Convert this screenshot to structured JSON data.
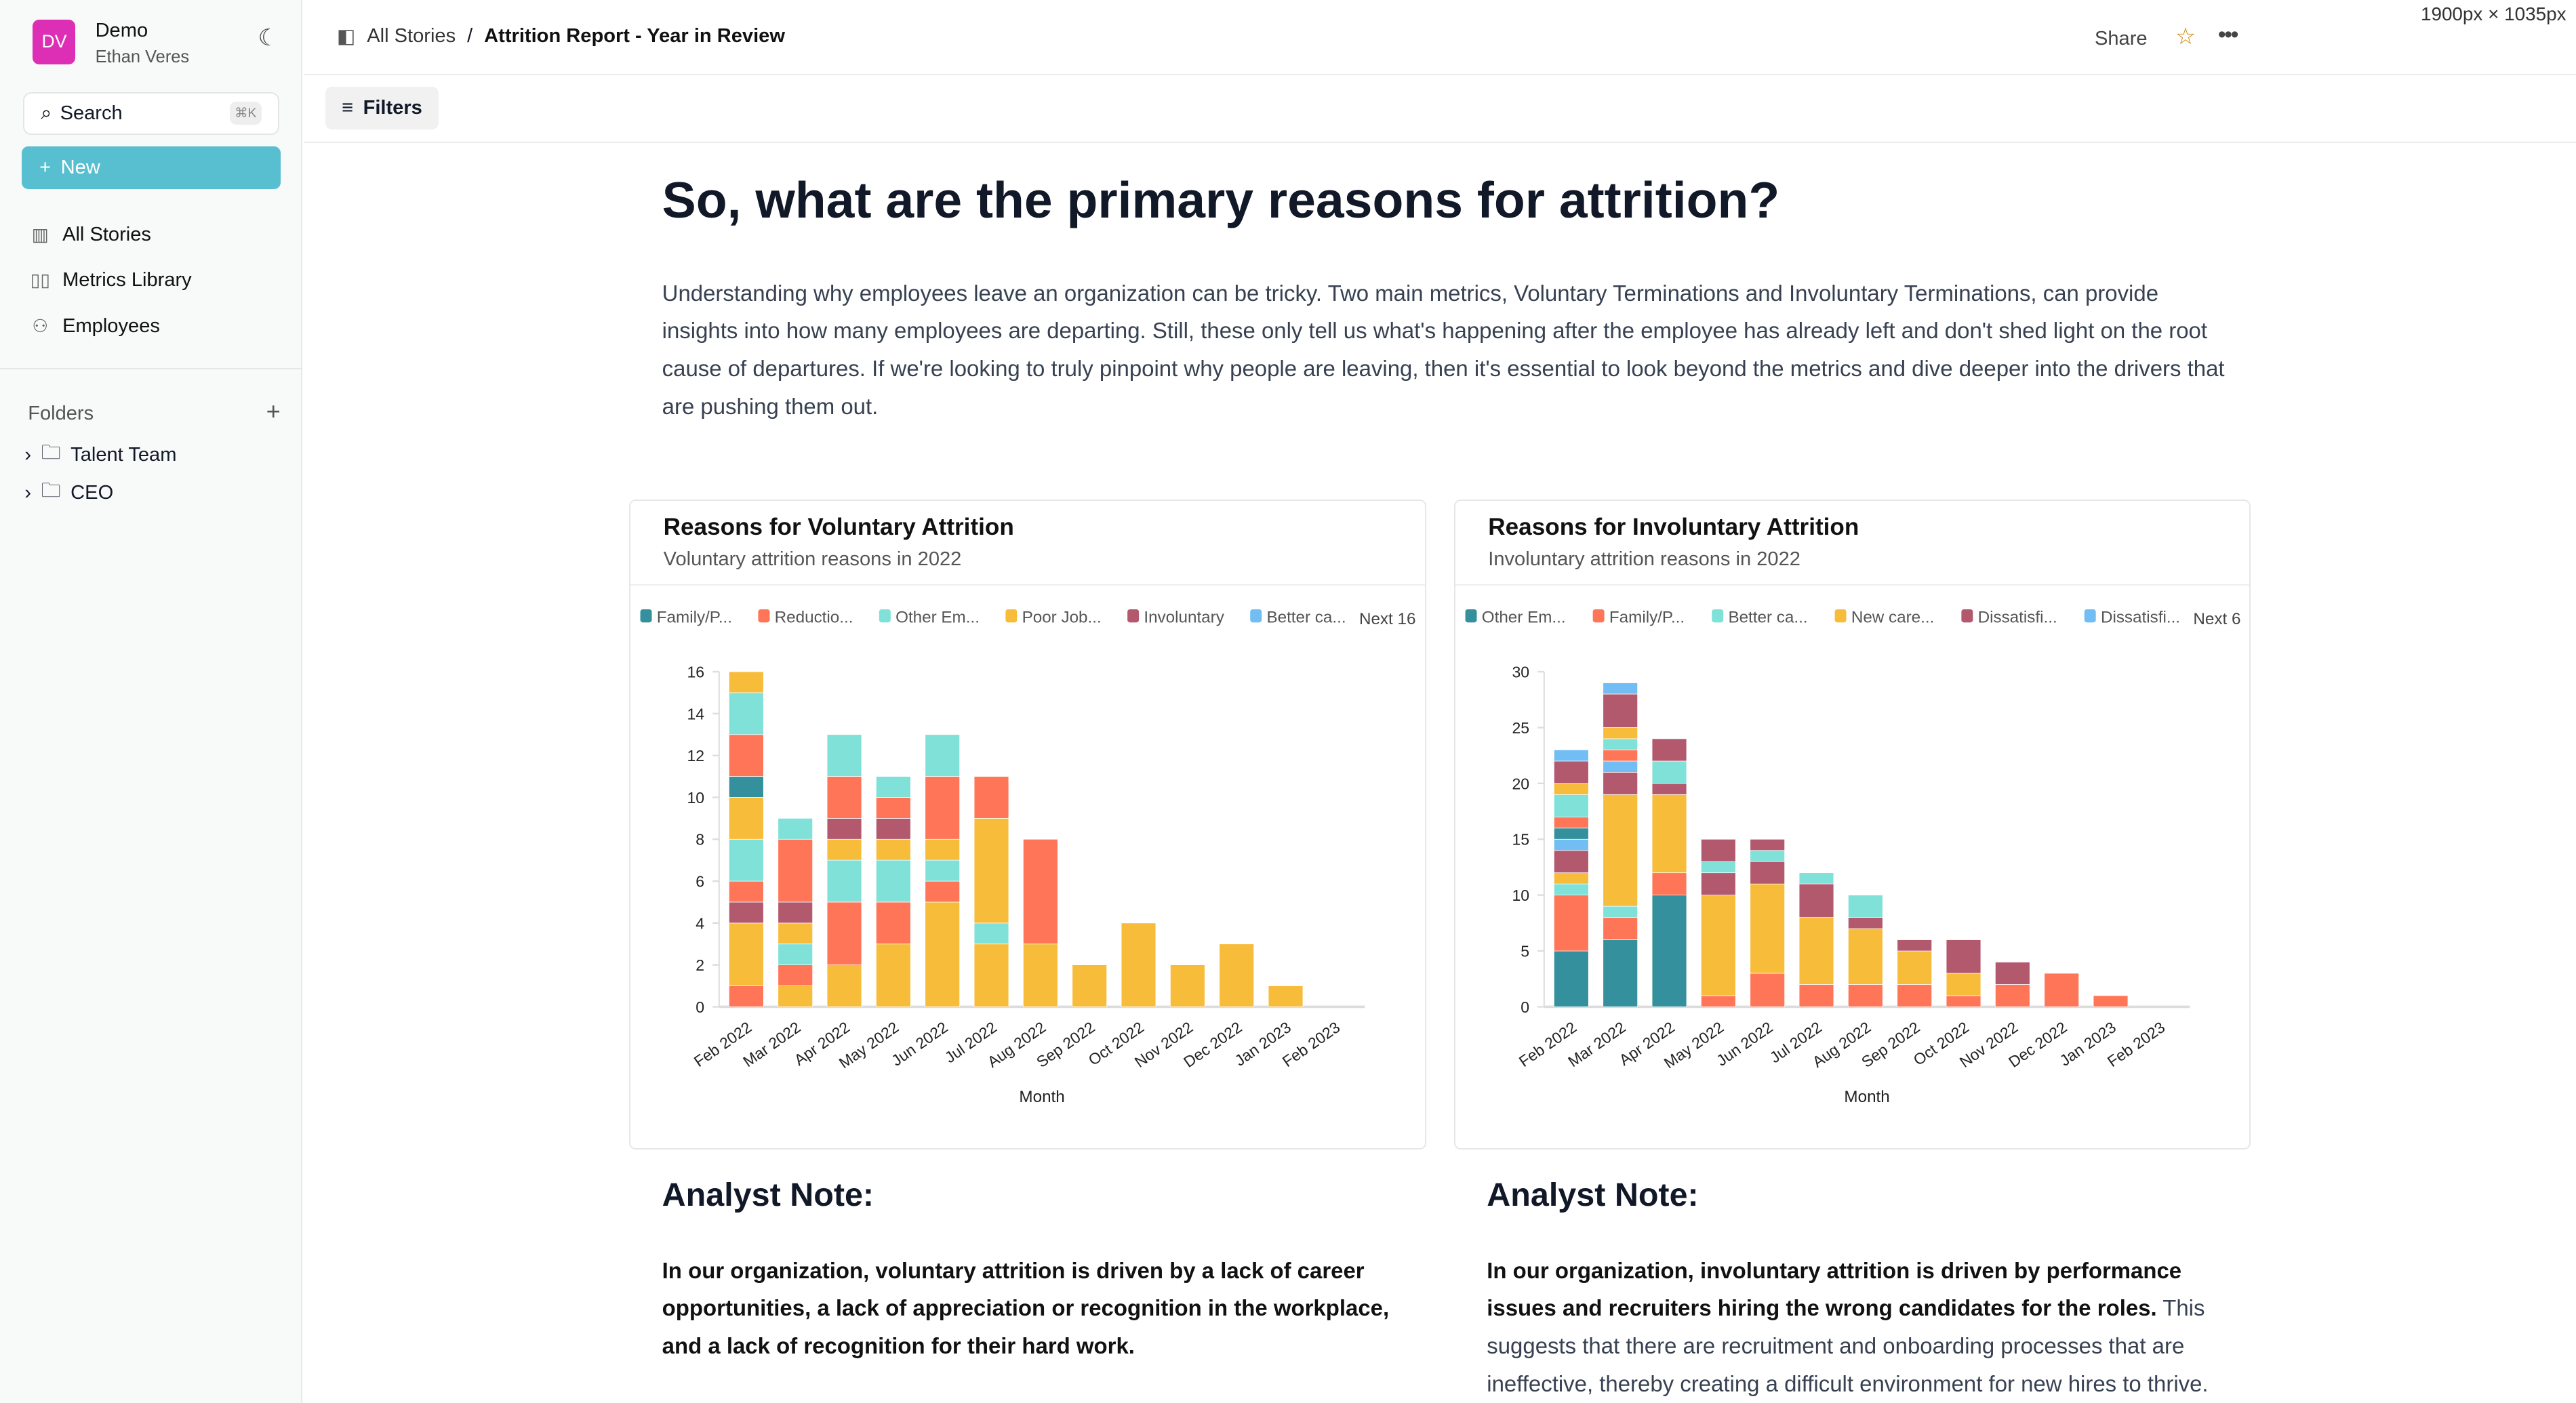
{
  "sidebar": {
    "avatar": "DV",
    "org": "Demo",
    "user": "Ethan Veres",
    "search": "Search",
    "shortcut": "⌘K",
    "new": "New",
    "nav": [
      {
        "label": "All Stories",
        "icon": "bar-chart-icon"
      },
      {
        "label": "Metrics Library",
        "icon": "book-icon"
      },
      {
        "label": "Employees",
        "icon": "users-icon"
      }
    ],
    "folders_label": "Folders",
    "folders": [
      "Talent Team",
      "CEO"
    ]
  },
  "header": {
    "crumb_root": "All Stories",
    "crumb_sep": "/",
    "title": "Attrition Report - Year in Review",
    "dims": "1900px × 1035px",
    "share": "Share"
  },
  "filters": "Filters",
  "main": {
    "heading": "So, what are the primary reasons for attrition?",
    "intro": "Understanding why employees leave an organization can be tricky. Two main metrics, Voluntary Terminations and Involuntary Terminations, can provide insights into how many employees are departing. Still, these only tell us what's happening after the employee has already left and don't shed light on the root cause of departures. If we're looking to truly pinpoint why people are leaving, then it's essential to look beyond the metrics and dive deeper into the drivers that are pushing them out.",
    "notes": [
      {
        "title": "Analyst Note:",
        "bold": "In our organization, voluntary attrition is driven by a lack of career opportunities, a lack of appreciation or recognition in the workplace, and a lack of recognition for their hard work.",
        "rest": ""
      },
      {
        "title": "Analyst Note:",
        "bold": "In our organization, involuntary attrition is driven by performance issues and recruiters hiring the wrong candidates for the roles.",
        "rest": " This suggests that there are recruitment and onboarding processes that are ineffective, thereby creating a difficult environment for new hires to thrive."
      }
    ]
  },
  "palette": [
    "#34909c",
    "#ff7557",
    "#80e1d9",
    "#f8bc3b",
    "#b2596e",
    "#72bef4"
  ],
  "chart_data": [
    {
      "type": "bar",
      "stacked": true,
      "title": "Reasons for Voluntary Attrition",
      "subtitle": "Voluntary attrition reasons in 2022",
      "xlabel": "Month",
      "ylabel": "",
      "ylim": [
        0,
        16
      ],
      "yticks": [
        0,
        2,
        4,
        6,
        8,
        10,
        12,
        14,
        16
      ],
      "legend": [
        "Family/P...",
        "Reductio...",
        "Other Em...",
        "Poor Job...",
        "Involuntary",
        "Better ca..."
      ],
      "legend_more": "Next 16",
      "categories": [
        "Feb 2022",
        "Mar 2022",
        "Apr 2022",
        "May 2022",
        "Jun 2022",
        "Jul 2022",
        "Aug 2022",
        "Sep 2022",
        "Oct 2022",
        "Nov 2022",
        "Dec 2022",
        "Jan 2023",
        "Feb 2023"
      ],
      "stacks": [
        [
          [
            1,
            1
          ],
          [
            3,
            3
          ],
          [
            4,
            1
          ],
          [
            1,
            1
          ],
          [
            2,
            2
          ],
          [
            3,
            2
          ],
          [
            0,
            1
          ],
          [
            1,
            2
          ],
          [
            2,
            2
          ],
          [
            3,
            1
          ]
        ],
        [
          [
            3,
            1
          ],
          [
            1,
            1
          ],
          [
            2,
            1
          ],
          [
            3,
            1
          ],
          [
            4,
            1
          ],
          [
            1,
            3
          ],
          [
            2,
            1
          ]
        ],
        [
          [
            3,
            2
          ],
          [
            1,
            3
          ],
          [
            2,
            2
          ],
          [
            3,
            1
          ],
          [
            4,
            1
          ],
          [
            1,
            2
          ],
          [
            2,
            2
          ]
        ],
        [
          [
            3,
            3
          ],
          [
            1,
            2
          ],
          [
            2,
            2
          ],
          [
            3,
            1
          ],
          [
            4,
            1
          ],
          [
            1,
            1
          ],
          [
            2,
            1
          ]
        ],
        [
          [
            3,
            5
          ],
          [
            1,
            1
          ],
          [
            2,
            1
          ],
          [
            3,
            1
          ],
          [
            1,
            3
          ],
          [
            2,
            2
          ]
        ],
        [
          [
            3,
            3
          ],
          [
            2,
            1
          ],
          [
            3,
            5
          ],
          [
            1,
            2
          ]
        ],
        [
          [
            3,
            3
          ],
          [
            1,
            5
          ]
        ],
        [
          [
            3,
            2
          ]
        ],
        [
          [
            3,
            4
          ]
        ],
        [
          [
            3,
            2
          ]
        ],
        [
          [
            3,
            3
          ]
        ],
        [
          [
            3,
            1
          ]
        ],
        []
      ]
    },
    {
      "type": "bar",
      "stacked": true,
      "title": "Reasons for Involuntary Attrition",
      "subtitle": "Involuntary attrition reasons in 2022",
      "xlabel": "Month",
      "ylabel": "",
      "ylim": [
        0,
        30
      ],
      "yticks": [
        0,
        5,
        10,
        15,
        20,
        25,
        30
      ],
      "legend": [
        "Other Em...",
        "Family/P...",
        "Better ca...",
        "New care...",
        "Dissatisfi...",
        "Dissatisfi..."
      ],
      "legend_more": "Next 6",
      "categories": [
        "Feb 2022",
        "Mar 2022",
        "Apr 2022",
        "May 2022",
        "Jun 2022",
        "Jul 2022",
        "Aug 2022",
        "Sep 2022",
        "Oct 2022",
        "Nov 2022",
        "Dec 2022",
        "Jan 2023",
        "Feb 2023"
      ],
      "stacks": [
        [
          [
            0,
            5
          ],
          [
            1,
            5
          ],
          [
            2,
            1
          ],
          [
            3,
            1
          ],
          [
            4,
            2
          ],
          [
            5,
            1
          ],
          [
            0,
            1
          ],
          [
            1,
            1
          ],
          [
            2,
            2
          ],
          [
            3,
            1
          ],
          [
            4,
            2
          ],
          [
            5,
            1
          ]
        ],
        [
          [
            0,
            6
          ],
          [
            1,
            2
          ],
          [
            2,
            1
          ],
          [
            3,
            10
          ],
          [
            4,
            2
          ],
          [
            5,
            1
          ],
          [
            1,
            1
          ],
          [
            2,
            1
          ],
          [
            3,
            1
          ],
          [
            4,
            3
          ],
          [
            5,
            1
          ]
        ],
        [
          [
            0,
            10
          ],
          [
            1,
            2
          ],
          [
            3,
            7
          ],
          [
            4,
            1
          ],
          [
            2,
            2
          ],
          [
            4,
            2
          ]
        ],
        [
          [
            1,
            1
          ],
          [
            3,
            9
          ],
          [
            4,
            2
          ],
          [
            2,
            1
          ],
          [
            4,
            2
          ]
        ],
        [
          [
            1,
            3
          ],
          [
            3,
            8
          ],
          [
            4,
            2
          ],
          [
            2,
            1
          ],
          [
            4,
            1
          ]
        ],
        [
          [
            1,
            2
          ],
          [
            3,
            6
          ],
          [
            4,
            3
          ],
          [
            2,
            1
          ]
        ],
        [
          [
            1,
            2
          ],
          [
            3,
            5
          ],
          [
            4,
            1
          ],
          [
            2,
            2
          ]
        ],
        [
          [
            1,
            2
          ],
          [
            3,
            3
          ],
          [
            4,
            1
          ]
        ],
        [
          [
            1,
            1
          ],
          [
            3,
            2
          ],
          [
            4,
            3
          ]
        ],
        [
          [
            1,
            2
          ],
          [
            4,
            2
          ]
        ],
        [
          [
            1,
            3
          ]
        ],
        [
          [
            1,
            1
          ]
        ],
        []
      ]
    }
  ]
}
